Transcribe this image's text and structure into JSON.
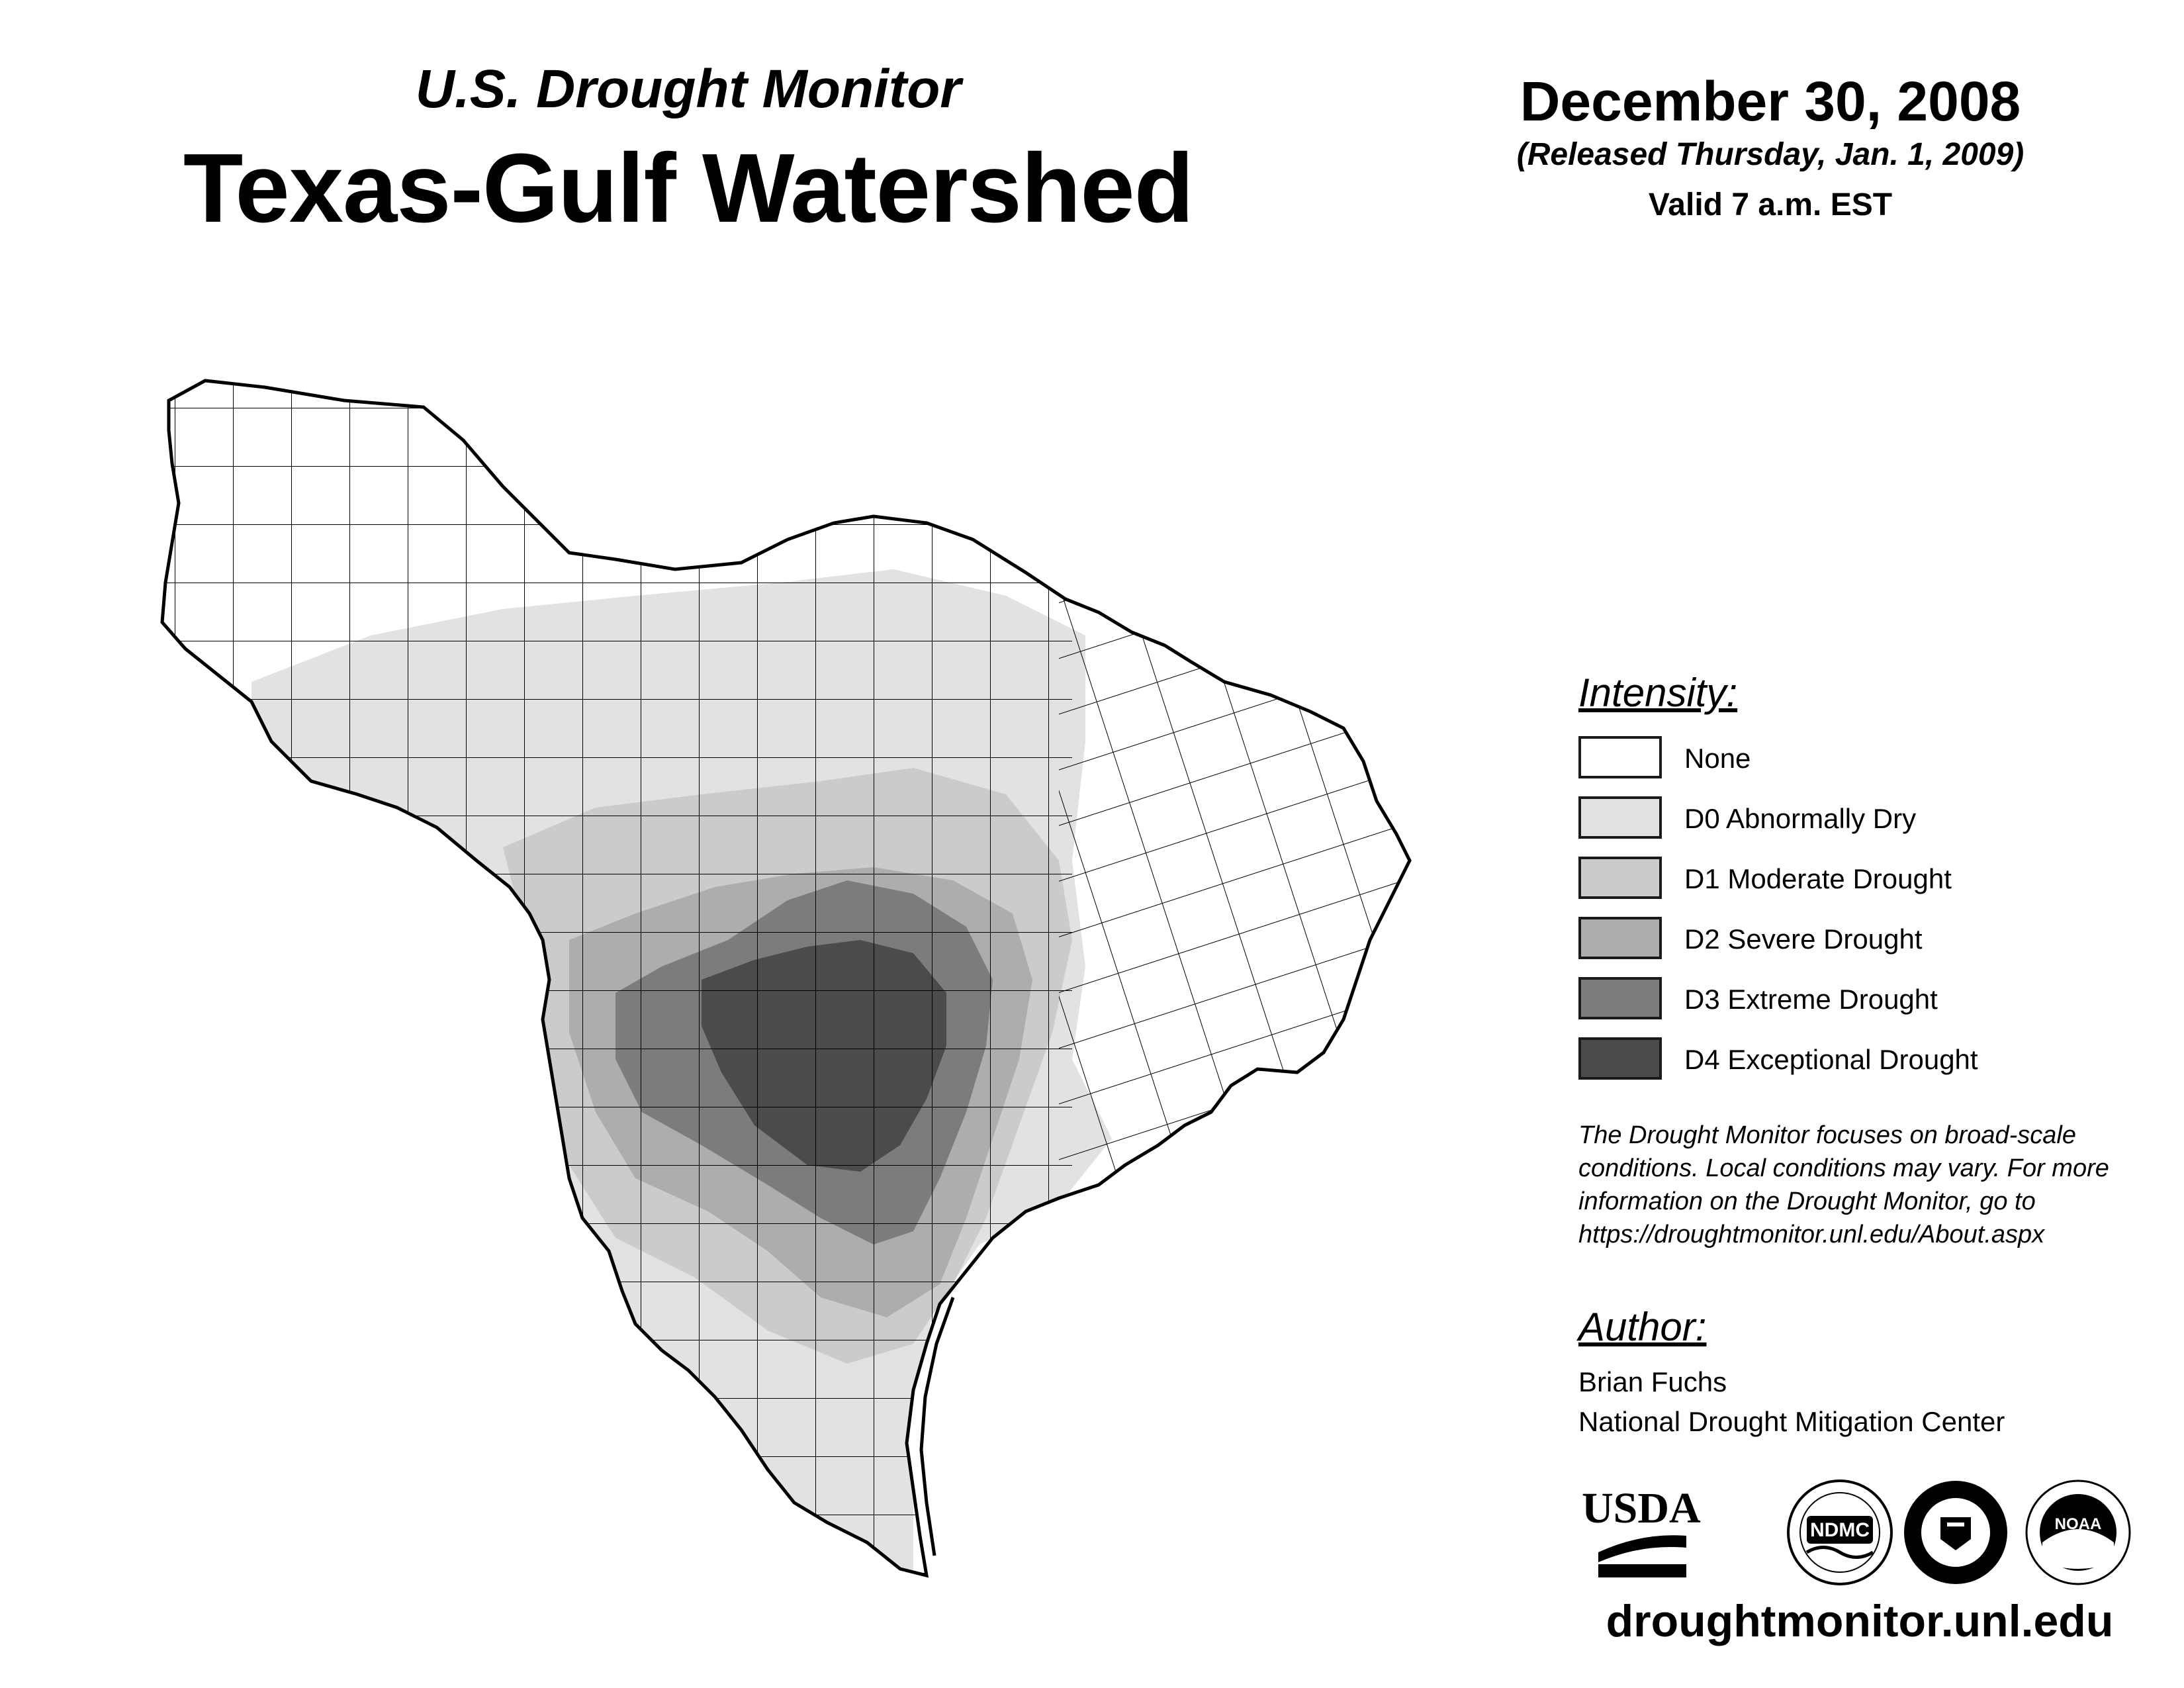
{
  "header": {
    "subtitle": "U.S. Drought Monitor",
    "title": "Texas-Gulf Watershed",
    "date": "December 30, 2008",
    "release": "(Released Thursday, Jan. 1, 2009)",
    "valid": "Valid 7 a.m. EST"
  },
  "legend": {
    "heading": "Intensity:",
    "items": [
      {
        "label": "None",
        "color": "#ffffff"
      },
      {
        "label": "D0 Abnormally Dry",
        "color": "#e2e2e2"
      },
      {
        "label": "D1 Moderate Drought",
        "color": "#cbcbcb"
      },
      {
        "label": "D2 Severe Drought",
        "color": "#adadad"
      },
      {
        "label": "D3 Extreme Drought",
        "color": "#7c7c7c"
      },
      {
        "label": "D4 Exceptional Drought",
        "color": "#4b4b4b"
      }
    ]
  },
  "note": {
    "lines": [
      "The Drought Monitor focuses on broad-scale",
      "conditions. Local conditions may vary. For more",
      "information on the Drought Monitor, go to",
      "https://droughtmonitor.unl.edu/About.aspx"
    ]
  },
  "author": {
    "heading": "Author:",
    "name": "Brian Fuchs",
    "org": "National Drought Mitigation Center"
  },
  "logos": {
    "usda": "USDA",
    "ndmc": "NDMC",
    "noaa": "NOAA"
  },
  "website": "droughtmonitor.unl.edu"
}
